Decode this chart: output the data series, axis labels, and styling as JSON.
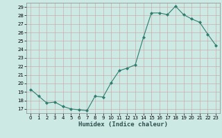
{
  "x": [
    0,
    1,
    2,
    3,
    4,
    5,
    6,
    7,
    8,
    9,
    10,
    11,
    12,
    13,
    14,
    15,
    16,
    17,
    18,
    19,
    20,
    21,
    22,
    23
  ],
  "y": [
    19.3,
    18.5,
    17.7,
    17.8,
    17.3,
    17.0,
    16.9,
    16.8,
    18.5,
    18.4,
    20.1,
    21.5,
    21.8,
    22.2,
    25.4,
    28.3,
    28.3,
    28.1,
    29.1,
    28.1,
    27.6,
    27.2,
    25.8,
    24.5
  ],
  "line_color": "#2e7d6e",
  "marker": "D",
  "marker_size": 2,
  "bg_color": "#cce9e4",
  "grid_color": "#b0c8c4",
  "xlabel": "Humidex (Indice chaleur)",
  "ylim": [
    16.5,
    29.5
  ],
  "xlim": [
    -0.5,
    23.5
  ],
  "yticks": [
    17,
    18,
    19,
    20,
    21,
    22,
    23,
    24,
    25,
    26,
    27,
    28,
    29
  ],
  "xticks": [
    0,
    1,
    2,
    3,
    4,
    5,
    6,
    7,
    8,
    9,
    10,
    11,
    12,
    13,
    14,
    15,
    16,
    17,
    18,
    19,
    20,
    21,
    22,
    23
  ]
}
